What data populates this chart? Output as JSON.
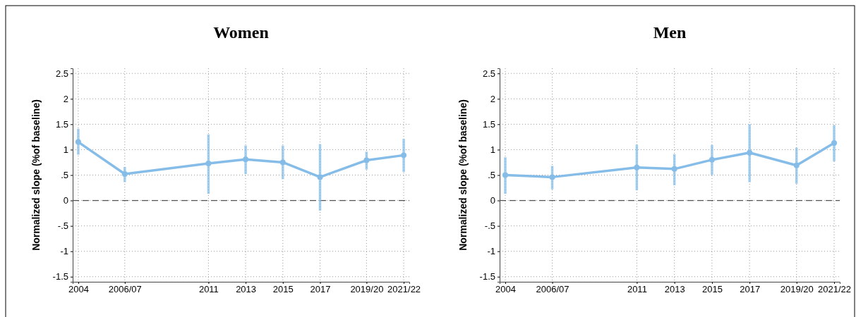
{
  "chart_data": [
    {
      "type": "line",
      "title": "Women",
      "ylabel": "Normalized slope (%of baseline)",
      "x": [
        2004,
        2006.5,
        2011,
        2013,
        2015,
        2017,
        2019.5,
        2021.5
      ],
      "xlim": [
        2003.7,
        2021.8
      ],
      "xticks": [
        2004,
        {
          "value": 2006.5,
          "label": "2006/07"
        },
        2011,
        2013,
        2015,
        2017,
        {
          "value": 2019.5,
          "label": "2019/20"
        },
        {
          "value": 2021.5,
          "label": "2021/22"
        }
      ],
      "ylim": [
        -1.6,
        2.6
      ],
      "yticks": [
        {
          "value": -1.5,
          "label": "-1.5"
        },
        {
          "value": -1,
          "label": "-1"
        },
        {
          "value": -0.5,
          "label": "-.5"
        },
        0,
        {
          "value": 0.5,
          "label": ".5"
        },
        1,
        {
          "value": 1.5,
          "label": "1.5"
        },
        2,
        {
          "value": 2.5,
          "label": "2.5"
        }
      ],
      "grid": true,
      "marker": "circle",
      "line_style": "solid",
      "ref_lines": [
        {
          "axis": "y",
          "value": 0,
          "color": "#555555",
          "line_style": "dashed"
        }
      ],
      "series": [
        {
          "color": "#85bde8",
          "values": [
            1.15,
            0.52,
            0.73,
            0.81,
            0.75,
            0.46,
            0.79,
            0.89
          ],
          "errors": [
            [
              0.9,
              1.41
            ],
            [
              0.36,
              0.66
            ],
            [
              0.13,
              1.3
            ],
            [
              0.52,
              1.08
            ],
            [
              0.42,
              1.08
            ],
            [
              -0.2,
              1.11
            ],
            [
              0.61,
              0.96
            ],
            [
              0.56,
              1.21
            ]
          ]
        }
      ]
    },
    {
      "type": "line",
      "title": "Men",
      "ylabel": "Normalized slope (%of baseline)",
      "x": [
        2004,
        2006.5,
        2011,
        2013,
        2015,
        2017,
        2019.5,
        2021.5
      ],
      "xlim": [
        2003.7,
        2021.8
      ],
      "xticks": [
        2004,
        {
          "value": 2006.5,
          "label": "2006/07"
        },
        2011,
        2013,
        2015,
        2017,
        {
          "value": 2019.5,
          "label": "2019/20"
        },
        {
          "value": 2021.5,
          "label": "2021/22"
        }
      ],
      "ylim": [
        -1.6,
        2.6
      ],
      "yticks": [
        {
          "value": -1.5,
          "label": "-1.5"
        },
        {
          "value": -1,
          "label": "-1"
        },
        {
          "value": -0.5,
          "label": "-.5"
        },
        0,
        {
          "value": 0.5,
          "label": ".5"
        },
        1,
        {
          "value": 1.5,
          "label": "1.5"
        },
        2,
        {
          "value": 2.5,
          "label": "2.5"
        }
      ],
      "grid": true,
      "marker": "circle",
      "line_style": "solid",
      "ref_lines": [
        {
          "axis": "y",
          "value": 0,
          "color": "#555555",
          "line_style": "dashed"
        }
      ],
      "series": [
        {
          "color": "#85bde8",
          "values": [
            0.5,
            0.46,
            0.65,
            0.62,
            0.8,
            0.94,
            0.69,
            1.13
          ],
          "errors": [
            [
              0.13,
              0.85
            ],
            [
              0.22,
              0.68
            ],
            [
              0.2,
              1.1
            ],
            [
              0.3,
              0.91
            ],
            [
              0.5,
              1.09
            ],
            [
              0.36,
              1.5
            ],
            [
              0.33,
              1.04
            ],
            [
              0.77,
              1.48
            ]
          ]
        }
      ]
    }
  ]
}
